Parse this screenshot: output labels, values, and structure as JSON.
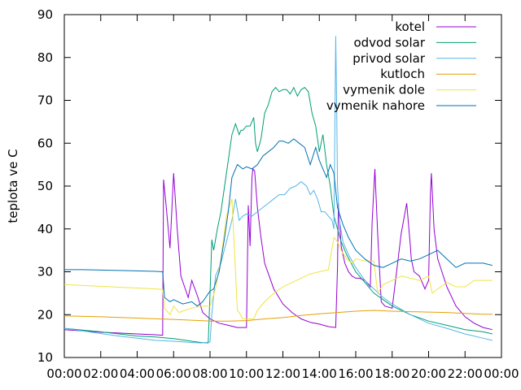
{
  "chart_data": {
    "type": "line",
    "ylabel": "teplota ve C",
    "xlabel": "",
    "title": "",
    "ylim": [
      10,
      90
    ],
    "xlim": [
      0,
      24
    ],
    "yticks": [
      10,
      20,
      30,
      40,
      50,
      60,
      70,
      80,
      90
    ],
    "xticks": [
      0,
      2,
      4,
      6,
      8,
      10,
      12,
      14,
      16,
      18,
      20,
      22,
      24
    ],
    "xtick_labels": [
      "00:00",
      "02:00",
      "04:00",
      "06:00",
      "08:00",
      "10:00",
      "12:00",
      "14:00",
      "16:00",
      "18:00",
      "20:00",
      "22:00",
      "00:00"
    ],
    "grid": false,
    "legend_position": "top-right",
    "series": [
      {
        "name": "kotel",
        "color": "#9400d3",
        "x": [
          0,
          1,
          2,
          3,
          4,
          5,
          5.4,
          5.45,
          5.6,
          5.8,
          6.0,
          6.2,
          6.4,
          6.6,
          6.8,
          7.0,
          7.3,
          7.6,
          8.0,
          8.5,
          9.0,
          9.5,
          10.0,
          10.1,
          10.2,
          10.3,
          10.35,
          10.45,
          10.6,
          10.8,
          11.0,
          11.5,
          12.0,
          12.5,
          13.0,
          13.5,
          14.0,
          14.5,
          14.9,
          15.0,
          15.05,
          15.2,
          15.4,
          15.6,
          15.8,
          16.0,
          16.2,
          16.5,
          16.8,
          16.9,
          17.05,
          17.2,
          17.4,
          17.6,
          18.0,
          18.2,
          18.5,
          18.8,
          19.0,
          19.05,
          19.2,
          19.5,
          19.8,
          20.0,
          20.1,
          20.15,
          20.3,
          20.5,
          21.0,
          21.5,
          22.0,
          22.5,
          23.0,
          23.5
        ],
        "y": [
          16.5,
          16.2,
          15.9,
          15.7,
          15.5,
          15.3,
          15.2,
          51.5,
          45,
          35.5,
          53,
          40,
          29,
          26.5,
          24,
          28,
          24.5,
          20.5,
          19,
          18,
          17.5,
          17,
          17,
          45.5,
          36,
          52,
          54,
          53.5,
          45,
          38,
          32,
          26,
          22.5,
          20.5,
          19,
          18.2,
          17.8,
          17.2,
          17,
          31,
          46,
          36,
          32,
          30,
          29,
          28.5,
          28.5,
          28,
          26.5,
          41.5,
          54,
          39,
          23,
          22,
          21.5,
          28.5,
          39,
          46,
          36,
          33,
          30,
          29,
          26,
          28,
          48,
          53,
          40,
          33,
          26.5,
          22,
          19.5,
          18,
          17,
          16.5
        ]
      },
      {
        "name": "odvod solar",
        "color": "#009e73",
        "x": [
          0,
          1,
          2,
          3,
          4,
          5,
          6,
          7,
          7.5,
          7.9,
          8.0,
          8.1,
          8.2,
          8.4,
          8.6,
          8.8,
          9.0,
          9.2,
          9.4,
          9.6,
          9.7,
          9.8,
          10.0,
          10.2,
          10.4,
          10.5,
          10.6,
          10.8,
          11.0,
          11.2,
          11.4,
          11.6,
          11.8,
          12.0,
          12.2,
          12.4,
          12.6,
          12.8,
          13.0,
          13.2,
          13.4,
          13.6,
          13.8,
          14.0,
          14.2,
          14.4,
          14.6,
          14.8,
          15.0,
          15.2,
          15.5,
          16.0,
          16.5,
          17.0,
          17.5,
          18.0,
          19.0,
          20.0,
          21.0,
          22.0,
          23.0,
          23.5
        ],
        "y": [
          16.8,
          16.4,
          16,
          15.5,
          15,
          14.8,
          14.4,
          13.8,
          13.5,
          13.4,
          25,
          37.5,
          35,
          40,
          44,
          50,
          56,
          62,
          64.5,
          62,
          63,
          63,
          64,
          64,
          66,
          60,
          58,
          61,
          67,
          69,
          72,
          73,
          72,
          72.5,
          72.5,
          71.5,
          73,
          71,
          72.5,
          73,
          72,
          67,
          64,
          58,
          62,
          55,
          50,
          43,
          40,
          37,
          34,
          30,
          27.5,
          25,
          23.5,
          22,
          20,
          18.5,
          17.5,
          16.5,
          16,
          15.5
        ]
      },
      {
        "name": "privod solar",
        "color": "#56b4e9",
        "x": [
          0,
          1,
          2,
          3,
          4,
          5,
          6,
          7,
          7.5,
          8.0,
          8.1,
          8.3,
          8.6,
          8.9,
          9.2,
          9.4,
          9.6,
          9.8,
          10.0,
          10.3,
          10.6,
          10.9,
          11.2,
          11.5,
          11.8,
          12.1,
          12.4,
          12.7,
          13.0,
          13.3,
          13.5,
          13.7,
          13.9,
          14.1,
          14.3,
          14.5,
          14.7,
          14.8,
          14.9,
          14.95,
          15.0,
          15.1,
          15.3,
          15.6,
          16.0,
          16.5,
          17.0,
          17.5,
          18.0,
          19.0,
          20.0,
          21.0,
          22.0,
          23.0,
          23.5
        ],
        "y": [
          16.8,
          16.2,
          15.6,
          15,
          14.5,
          14,
          13.8,
          13.5,
          13.4,
          13.6,
          20,
          29,
          32,
          37,
          42,
          47,
          42,
          43,
          43.5,
          43,
          44,
          45,
          46,
          47,
          48,
          48,
          49.5,
          50,
          51,
          50,
          48,
          49,
          47,
          44,
          44,
          43,
          42,
          40,
          85,
          70,
          50,
          42,
          37,
          34,
          31,
          28,
          26,
          24,
          22.5,
          20,
          18,
          16.8,
          15.5,
          14.5,
          14
        ]
      },
      {
        "name": "kutloch",
        "color": "#e69f00",
        "x": [
          0,
          2,
          4,
          6,
          8,
          9,
          10,
          11,
          12,
          13,
          14,
          15,
          16,
          17,
          18,
          19,
          20,
          21,
          22,
          23,
          23.5
        ],
        "y": [
          19.7,
          19.5,
          19.2,
          18.9,
          18.5,
          18.5,
          18.6,
          19,
          19.3,
          19.8,
          20.2,
          20.5,
          20.8,
          21,
          20.8,
          20.7,
          20.6,
          20.5,
          20.3,
          20.1,
          20.1
        ],
        "ylim_note": ""
      },
      {
        "name": "vymenik dole",
        "color": "#f0e442",
        "x": [
          0,
          1,
          2,
          3,
          4,
          5,
          5.4,
          5.5,
          5.8,
          6.0,
          6.3,
          6.6,
          7.0,
          7.5,
          8.0,
          8.3,
          8.6,
          8.9,
          9.2,
          9.4,
          9.5,
          9.6,
          9.8,
          10.0,
          10.4,
          10.6,
          11.0,
          11.5,
          12.0,
          12.5,
          13.0,
          13.5,
          14.0,
          14.5,
          14.8,
          15.0,
          15.2,
          15.5,
          15.8,
          16.0,
          16.5,
          17.0,
          17.2,
          17.5,
          18.0,
          18.5,
          19.0,
          19.5,
          20.0,
          20.2,
          20.5,
          21.0,
          21.5,
          22.0,
          22.5,
          23.0,
          23.5
        ],
        "y": [
          27,
          26.8,
          26.6,
          26.4,
          26.2,
          26,
          25.9,
          21.5,
          20,
          22,
          20.5,
          21,
          21.5,
          22,
          22,
          26,
          33,
          43,
          47,
          30,
          21,
          20.5,
          19,
          19,
          19,
          21,
          23,
          25,
          26.5,
          27.5,
          28.5,
          29.5,
          30,
          30.5,
          38,
          37,
          35,
          33,
          32,
          33,
          32.5,
          32.5,
          25,
          27,
          28,
          29,
          28.5,
          28,
          29,
          25,
          26,
          27.5,
          26.5,
          26.5,
          28,
          28,
          28
        ]
      },
      {
        "name": "vymenik nahore",
        "color": "#0072b2",
        "x": [
          0,
          1,
          2,
          3,
          4,
          5,
          5.4,
          5.5,
          5.8,
          6.0,
          6.5,
          7.0,
          7.3,
          7.6,
          8.0,
          8.2,
          8.5,
          8.8,
          9.0,
          9.2,
          9.5,
          9.8,
          10.0,
          10.3,
          10.6,
          10.9,
          11.2,
          11.5,
          11.8,
          12.0,
          12.3,
          12.6,
          12.9,
          13.2,
          13.5,
          13.8,
          14.0,
          14.2,
          14.4,
          14.6,
          14.8,
          15.0,
          15.3,
          15.6,
          16.0,
          16.5,
          17.0,
          17.5,
          18.0,
          18.5,
          19.0,
          19.5,
          20.0,
          20.5,
          21.0,
          21.5,
          22.0,
          22.5,
          23.0,
          23.5
        ],
        "y": [
          30.5,
          30.5,
          30.4,
          30.3,
          30.2,
          30.1,
          30,
          24,
          23,
          23.5,
          22.5,
          23,
          22,
          23,
          25.5,
          26,
          30,
          38,
          44,
          52,
          55,
          54,
          54.5,
          54,
          55,
          57,
          58,
          59,
          60.5,
          60.5,
          60,
          61,
          60,
          59,
          55,
          59,
          56,
          54,
          52,
          55,
          53,
          45,
          41,
          38,
          35,
          33,
          31.5,
          31,
          32,
          33,
          32.5,
          33,
          34,
          35,
          33,
          31,
          32,
          32,
          32,
          31.5
        ]
      }
    ]
  }
}
